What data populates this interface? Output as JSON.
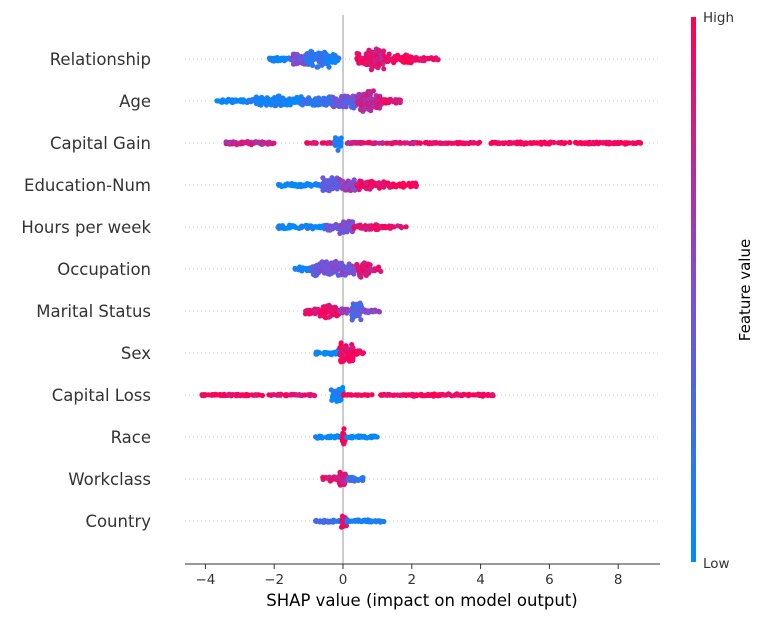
{
  "chart_data": {
    "type": "scatter",
    "subtype": "shap-beeswarm-summary",
    "title": "",
    "xlabel": "SHAP value (impact on model output)",
    "ylabel": "",
    "xlim": [
      -4.6,
      9.3
    ],
    "xticks": [
      -4,
      -2,
      0,
      2,
      4,
      6,
      8
    ],
    "xtick_labels": [
      "−4",
      "−2",
      "0",
      "2",
      "4",
      "6",
      "8"
    ],
    "grid": false,
    "features": [
      {
        "name": "Relationship",
        "segments": [
          {
            "x0": -2.2,
            "x1": -1.5,
            "v": 0.05,
            "h": 0.2
          },
          {
            "x0": -1.5,
            "x1": -0.9,
            "v": 0.5,
            "h": 0.5
          },
          {
            "x0": -1.1,
            "x1": -0.4,
            "v": 0.2,
            "h": 0.7
          },
          {
            "x0": -0.5,
            "x1": -0.1,
            "v": 0.1,
            "h": 0.4
          },
          {
            "x0": 0.4,
            "x1": 0.7,
            "v": 0.95,
            "h": 0.6
          },
          {
            "x0": 0.7,
            "x1": 1.2,
            "v": 0.85,
            "h": 0.9
          },
          {
            "x0": 1.2,
            "x1": 2.0,
            "v": 0.97,
            "h": 0.4
          },
          {
            "x0": 2.0,
            "x1": 2.8,
            "v": 0.97,
            "h": 0.15
          }
        ]
      },
      {
        "name": "Age",
        "segments": [
          {
            "x0": -3.7,
            "x1": -2.6,
            "v": 0.02,
            "h": 0.15
          },
          {
            "x0": -2.6,
            "x1": -1.2,
            "v": 0.05,
            "h": 0.4
          },
          {
            "x0": -1.2,
            "x1": -0.3,
            "v": 0.2,
            "h": 0.4
          },
          {
            "x0": -0.3,
            "x1": 0.4,
            "v": 0.4,
            "h": 0.6
          },
          {
            "x0": 0.4,
            "x1": 1.1,
            "v": 0.75,
            "h": 0.9
          },
          {
            "x0": 1.1,
            "x1": 1.7,
            "v": 0.9,
            "h": 0.2
          }
        ]
      },
      {
        "name": "Capital Gain",
        "segments": [
          {
            "x0": -3.4,
            "x1": -2.0,
            "v": 0.75,
            "h": 0.15
          },
          {
            "x0": -1.1,
            "x1": -0.3,
            "v": 0.9,
            "h": 0.05
          },
          {
            "x0": -0.25,
            "x1": -0.05,
            "v": 0.05,
            "h": 0.7
          },
          {
            "x0": 0.1,
            "x1": 2.2,
            "v": 0.85,
            "h": 0.06
          },
          {
            "x0": 2.2,
            "x1": 4.1,
            "v": 0.97,
            "h": 0.06
          },
          {
            "x0": 4.3,
            "x1": 8.2,
            "v": 0.99,
            "h": 0.1
          },
          {
            "x0": 8.2,
            "x1": 8.7,
            "v": 0.99,
            "h": 0.08
          }
        ]
      },
      {
        "name": "Education-Num",
        "segments": [
          {
            "x0": -1.9,
            "x1": -0.6,
            "v": 0.05,
            "h": 0.15
          },
          {
            "x0": -0.6,
            "x1": -0.1,
            "v": 0.35,
            "h": 0.7
          },
          {
            "x0": -0.1,
            "x1": 0.4,
            "v": 0.6,
            "h": 0.5
          },
          {
            "x0": 0.4,
            "x1": 1.2,
            "v": 0.9,
            "h": 0.4
          },
          {
            "x0": 1.2,
            "x1": 2.2,
            "v": 0.97,
            "h": 0.2
          }
        ]
      },
      {
        "name": "Hours per week",
        "segments": [
          {
            "x0": -1.9,
            "x1": -0.5,
            "v": 0.05,
            "h": 0.15
          },
          {
            "x0": -0.5,
            "x1": -0.1,
            "v": 0.4,
            "h": 0.3
          },
          {
            "x0": -0.1,
            "x1": 0.3,
            "v": 0.5,
            "h": 0.6
          },
          {
            "x0": 0.3,
            "x1": 1.1,
            "v": 0.9,
            "h": 0.25
          },
          {
            "x0": 1.1,
            "x1": 1.9,
            "v": 0.9,
            "h": 0.1
          }
        ]
      },
      {
        "name": "Occupation",
        "segments": [
          {
            "x0": -1.4,
            "x1": -0.9,
            "v": 0.1,
            "h": 0.2
          },
          {
            "x0": -0.9,
            "x1": -0.1,
            "v": 0.45,
            "h": 0.6
          },
          {
            "x0": -0.1,
            "x1": 0.4,
            "v": 0.5,
            "h": 0.5
          },
          {
            "x0": 0.4,
            "x1": 0.8,
            "v": 0.85,
            "h": 0.7
          },
          {
            "x0": 0.8,
            "x1": 1.1,
            "v": 0.85,
            "h": 0.2
          }
        ]
      },
      {
        "name": "Marital Status",
        "segments": [
          {
            "x0": -1.1,
            "x1": -0.7,
            "v": 0.9,
            "h": 0.25
          },
          {
            "x0": -0.7,
            "x1": -0.1,
            "v": 0.9,
            "h": 0.6
          },
          {
            "x0": -0.1,
            "x1": 0.2,
            "v": 0.6,
            "h": 0.2
          },
          {
            "x0": 0.25,
            "x1": 0.55,
            "v": 0.3,
            "h": 0.8
          },
          {
            "x0": 0.55,
            "x1": 1.1,
            "v": 0.55,
            "h": 0.15
          }
        ]
      },
      {
        "name": "Sex",
        "segments": [
          {
            "x0": -0.8,
            "x1": -0.1,
            "v": 0.05,
            "h": 0.2
          },
          {
            "x0": -0.1,
            "x1": 0.3,
            "v": 0.95,
            "h": 0.8
          },
          {
            "x0": 0.3,
            "x1": 0.6,
            "v": 0.95,
            "h": 0.2
          }
        ]
      },
      {
        "name": "Capital Loss",
        "segments": [
          {
            "x0": -4.1,
            "x1": -1.6,
            "v": 0.93,
            "h": 0.08
          },
          {
            "x0": -1.6,
            "x1": -0.8,
            "v": 0.85,
            "h": 0.06
          },
          {
            "x0": -0.35,
            "x1": 0.0,
            "v": 0.05,
            "h": 0.8
          },
          {
            "x0": 0.0,
            "x1": 2.0,
            "v": 0.95,
            "h": 0.05
          },
          {
            "x0": 2.0,
            "x1": 4.4,
            "v": 0.98,
            "h": 0.1
          }
        ]
      },
      {
        "name": "Race",
        "segments": [
          {
            "x0": -0.8,
            "x1": -0.05,
            "v": 0.03,
            "h": 0.12
          },
          {
            "x0": -0.05,
            "x1": 0.1,
            "v": 0.95,
            "h": 0.7
          },
          {
            "x0": 0.1,
            "x1": 1.0,
            "v": 0.03,
            "h": 0.12
          }
        ]
      },
      {
        "name": "Workclass",
        "segments": [
          {
            "x0": -0.6,
            "x1": -0.15,
            "v": 0.85,
            "h": 0.2
          },
          {
            "x0": -0.15,
            "x1": 0.15,
            "v": 0.85,
            "h": 0.7
          },
          {
            "x0": 0.15,
            "x1": 0.65,
            "v": 0.2,
            "h": 0.2
          }
        ]
      },
      {
        "name": "Country",
        "segments": [
          {
            "x0": -0.8,
            "x1": -0.05,
            "v": 0.2,
            "h": 0.12
          },
          {
            "x0": -0.05,
            "x1": 0.1,
            "v": 0.95,
            "h": 0.7
          },
          {
            "x0": 0.1,
            "x1": 1.2,
            "v": 0.05,
            "h": 0.12
          }
        ]
      }
    ],
    "colorbar": {
      "label": "Feature value",
      "high_label": "High",
      "low_label": "Low",
      "low_color": "#008bfb",
      "mid_color": "#7c4fd6",
      "high_color": "#ff0052"
    },
    "colors": {
      "axis": "#333333",
      "zero_line": "#999999",
      "row_guide": "#cccccc"
    }
  }
}
